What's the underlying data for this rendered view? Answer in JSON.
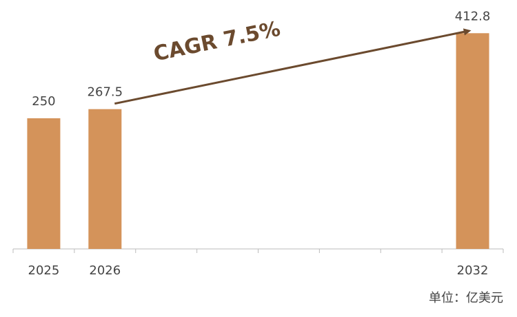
{
  "chart_data": {
    "type": "bar",
    "categories": [
      "2025",
      "2026",
      null,
      null,
      null,
      null,
      null,
      "2032"
    ],
    "values": [
      250,
      267.5,
      null,
      null,
      null,
      null,
      null,
      412.8
    ],
    "color": "#d4935a",
    "ylim": [
      0,
      475
    ],
    "annotation": "CAGR 7.5%",
    "unit_note": "单位：亿美元"
  }
}
